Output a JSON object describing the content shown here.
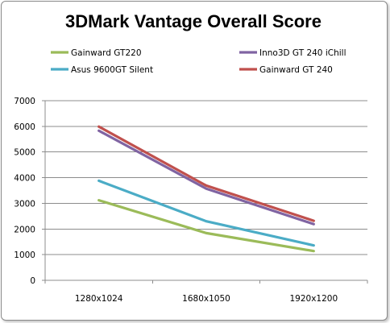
{
  "chart_data": {
    "type": "line",
    "title": "3DMark Vantage Overall Score",
    "xlabel": "",
    "ylabel": "",
    "categories": [
      "1280x1024",
      "1680x1050",
      "1920x1200"
    ],
    "ylim": [
      0,
      7000
    ],
    "yticks": [
      0,
      1000,
      2000,
      3000,
      4000,
      5000,
      6000,
      7000
    ],
    "grid": true,
    "legend_position": "top",
    "series": [
      {
        "name": "Gainward GT220",
        "color": "#9bbb59",
        "values": [
          3120,
          1840,
          1140
        ]
      },
      {
        "name": "Inno3D GT 240 iChill",
        "color": "#8064a2",
        "values": [
          5830,
          3570,
          2190
        ]
      },
      {
        "name": "Asus 9600GT Silent",
        "color": "#4bacc6",
        "values": [
          3880,
          2300,
          1360
        ]
      },
      {
        "name": "Gainward GT 240",
        "color": "#c0504d",
        "values": [
          5990,
          3690,
          2320
        ]
      }
    ]
  }
}
